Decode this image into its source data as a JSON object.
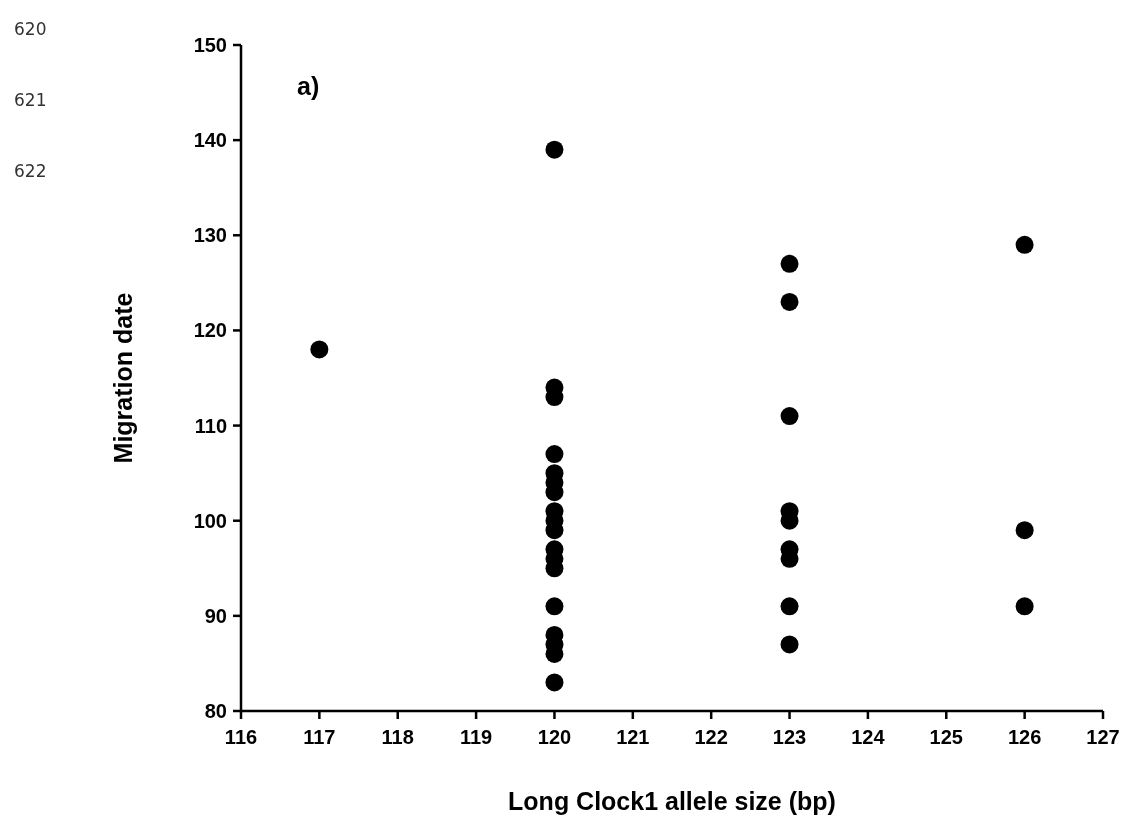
{
  "chart_data": {
    "type": "scatter",
    "xlabel": "Long Clock1 allele size (bp)",
    "ylabel": "Migration date",
    "annotations": [
      "a)",
      "620",
      "621",
      "622"
    ],
    "x": [
      117,
      120,
      120,
      120,
      120,
      120,
      120,
      120,
      120,
      120,
      120,
      120,
      120,
      120,
      120,
      120,
      120,
      120,
      120,
      123,
      123,
      123,
      123,
      123,
      123,
      123,
      123,
      123,
      126,
      126,
      126
    ],
    "values": [
      118,
      139,
      114,
      113,
      107,
      105,
      104,
      103,
      101,
      100,
      99,
      97,
      96,
      95,
      91,
      88,
      87,
      86,
      83,
      127,
      123,
      111,
      101,
      100,
      97,
      96,
      91,
      87,
      129,
      99,
      91
    ],
    "color": "#000000",
    "marker": "circle",
    "xlim": [
      116,
      127
    ],
    "xticks": [
      116,
      117,
      118,
      119,
      120,
      121,
      122,
      123,
      124,
      125,
      126,
      127
    ],
    "ylim": [
      80,
      150
    ],
    "yticks": [
      80,
      90,
      100,
      110,
      120,
      130,
      140,
      150
    ],
    "grid": false
  }
}
